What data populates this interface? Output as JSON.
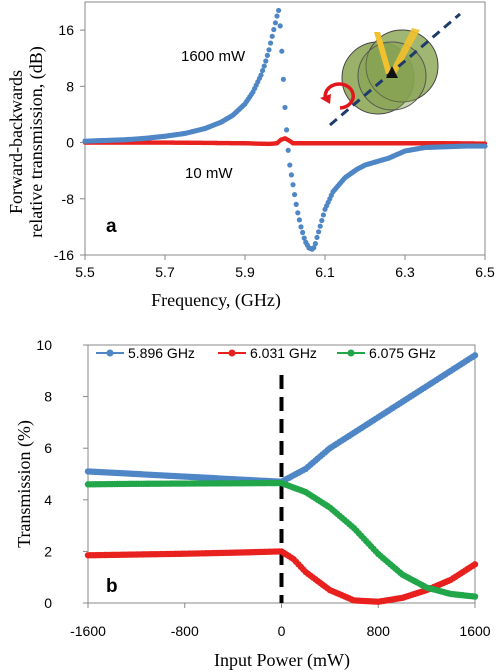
{
  "chart_data": [
    {
      "type": "scatter",
      "panel_label": "a",
      "xlabel": "Frequency, (GHz)",
      "ylabel_line1": "Forward-backwards",
      "ylabel_line2": "relative transmission, (dB)",
      "xlim": [
        5.5,
        6.5
      ],
      "ylim": [
        -16,
        20
      ],
      "xticks": [
        "5.5",
        "5.7",
        "5.9",
        "6.1",
        "6.3",
        "6.5"
      ],
      "yticks": [
        "16",
        "8",
        "0",
        "-8",
        "-16"
      ],
      "grid": false,
      "annotations": [
        "1600 mW",
        "10 mW"
      ],
      "inset_icon": "rotating-sphere-magnetization-icon",
      "series": [
        {
          "color": "#4f86c6",
          "label": "1600 mW",
          "x": [
            5.5,
            5.55,
            5.6,
            5.65,
            5.7,
            5.75,
            5.8,
            5.84,
            5.87,
            5.9,
            5.92,
            5.94,
            5.95,
            5.96,
            5.97,
            5.98,
            5.985,
            5.99,
            5.995,
            6.0,
            6.005,
            6.01,
            6.02,
            6.03,
            6.04,
            6.05,
            6.06,
            6.07,
            6.075,
            6.08,
            6.09,
            6.1,
            6.12,
            6.15,
            6.18,
            6.2,
            6.23,
            6.26,
            6.3,
            6.35,
            6.4,
            6.45,
            6.5
          ],
          "y": [
            0.2,
            0.3,
            0.4,
            0.6,
            0.9,
            1.3,
            2.0,
            2.9,
            3.9,
            5.5,
            7.2,
            9.6,
            11.2,
            13.2,
            15.6,
            18.0,
            19.0,
            15.0,
            10.0,
            5.0,
            1.0,
            -2.5,
            -6.0,
            -9.5,
            -12.0,
            -14.0,
            -15.0,
            -15.2,
            -14.6,
            -13.5,
            -11.5,
            -9.5,
            -7.0,
            -5.0,
            -3.8,
            -3.2,
            -2.7,
            -2.2,
            -1.2,
            -0.7,
            -0.6,
            -0.5,
            -0.5
          ]
        },
        {
          "color": "#e8201e",
          "label": "10 mW",
          "x": [
            5.5,
            5.6,
            5.7,
            5.8,
            5.9,
            5.96,
            5.98,
            5.99,
            6.0,
            6.01,
            6.02,
            6.05,
            6.1,
            6.2,
            6.3,
            6.4,
            6.5
          ],
          "y": [
            0.0,
            0.0,
            0.0,
            -0.05,
            -0.1,
            -0.2,
            -0.1,
            0.4,
            0.6,
            0.3,
            -0.1,
            -0.1,
            -0.1,
            -0.1,
            -0.1,
            -0.1,
            -0.15
          ]
        }
      ]
    },
    {
      "type": "line",
      "panel_label": "b",
      "xlabel": "Input Power (mW)",
      "ylabel": "Transmission (%)",
      "xlim": [
        -1600,
        1600
      ],
      "ylim": [
        0,
        10
      ],
      "xticks": [
        "-1600",
        "-800",
        "0",
        "800",
        "1600"
      ],
      "yticks": [
        "0",
        "2",
        "4",
        "6",
        "8",
        "10"
      ],
      "grid": false,
      "legend_position": "top",
      "vline_x": 0,
      "series": [
        {
          "name": "5.896 GHz",
          "color": "#4f86c6",
          "x": [
            -1600,
            -1200,
            -800,
            -400,
            0,
            200,
            400,
            800,
            1200,
            1600
          ],
          "y": [
            5.1,
            5.0,
            4.9,
            4.8,
            4.7,
            5.2,
            6.0,
            7.2,
            8.4,
            9.6
          ]
        },
        {
          "name": "6.031 GHz",
          "color": "#e8201e",
          "x": [
            -1600,
            -1200,
            -800,
            -400,
            0,
            100,
            200,
            400,
            600,
            800,
            1000,
            1200,
            1400,
            1600
          ],
          "y": [
            1.85,
            1.88,
            1.91,
            1.95,
            2.0,
            1.7,
            1.2,
            0.5,
            0.1,
            0.05,
            0.2,
            0.5,
            0.9,
            1.5
          ]
        },
        {
          "name": "6.075 GHz",
          "color": "#22a64a",
          "x": [
            -1600,
            -1200,
            -800,
            -400,
            0,
            200,
            400,
            600,
            800,
            1000,
            1200,
            1400,
            1600
          ],
          "y": [
            4.6,
            4.62,
            4.63,
            4.64,
            4.65,
            4.3,
            3.7,
            2.9,
            1.9,
            1.1,
            0.6,
            0.35,
            0.25
          ]
        }
      ]
    }
  ]
}
